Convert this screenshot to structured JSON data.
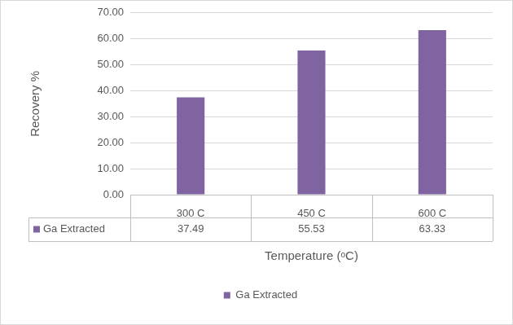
{
  "chart_data": {
    "type": "bar",
    "categories": [
      "300 C",
      "450 C",
      "600 C"
    ],
    "series": [
      {
        "name": "Ga Extracted",
        "color": "#8064a2",
        "values": [
          37.49,
          55.53,
          63.33
        ]
      }
    ],
    "x_label": "Temperature (ᵒC)",
    "y_label": "Recovery %",
    "ylim": [
      0,
      70
    ],
    "yticks": [
      {
        "value": 0,
        "label": "0.00"
      },
      {
        "value": 10,
        "label": "10.00"
      },
      {
        "value": 20,
        "label": "20.00"
      },
      {
        "value": 30,
        "label": "30.00"
      },
      {
        "value": 40,
        "label": "40.00"
      },
      {
        "value": 50,
        "label": "50.00"
      },
      {
        "value": 60,
        "label": "60.00"
      },
      {
        "value": 70,
        "label": "70.00"
      }
    ],
    "grid": true,
    "legend": "bottom"
  }
}
